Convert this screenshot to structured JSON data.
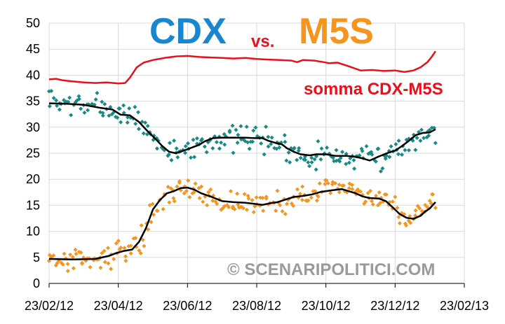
{
  "chart_data": {
    "type": "scatter",
    "title_parts": [
      {
        "text": "CDX",
        "color": "#1a86cf"
      },
      {
        "text": "vs.",
        "color": "#e8101a"
      },
      {
        "text": "M5S",
        "color": "#f7941d"
      }
    ],
    "ylim": [
      0,
      50
    ],
    "y_ticks": [
      "0",
      "5",
      "10",
      "15",
      "20",
      "25",
      "30",
      "35",
      "40",
      "45",
      "50"
    ],
    "x_ticks": [
      "23/02/12",
      "23/04/12",
      "23/06/12",
      "23/08/12",
      "23/10/12",
      "23/12/12",
      "23/02/13"
    ],
    "annotations": {
      "sum_label": "somma CDX-M5S",
      "watermark": "© SCENARIPOLITICI.COM"
    },
    "colors": {
      "cdx_points": "#178a85",
      "m5s_points": "#f7941d",
      "trend": "#000000",
      "sum": "#e8101a",
      "grid": "#d9d9d9"
    },
    "series": [
      {
        "key": "somma",
        "kind": "line",
        "points": [
          [
            0,
            39.2
          ],
          [
            6,
            39.3
          ],
          [
            12,
            39.0
          ],
          [
            20,
            38.8
          ],
          [
            30,
            38.6
          ],
          [
            40,
            38.5
          ],
          [
            50,
            38.6
          ],
          [
            60,
            38.4
          ],
          [
            66,
            38.5
          ],
          [
            70,
            39.5
          ],
          [
            76,
            41.5
          ],
          [
            82,
            42.4
          ],
          [
            90,
            42.9
          ],
          [
            100,
            43.3
          ],
          [
            110,
            43.6
          ],
          [
            120,
            43.7
          ],
          [
            130,
            43.5
          ],
          [
            140,
            43.4
          ],
          [
            150,
            43.3
          ],
          [
            160,
            43.2
          ],
          [
            170,
            43.3
          ],
          [
            180,
            43.1
          ],
          [
            190,
            43.0
          ],
          [
            200,
            42.9
          ],
          [
            210,
            42.8
          ],
          [
            215,
            42.5
          ],
          [
            220,
            42.9
          ],
          [
            230,
            42.8
          ],
          [
            238,
            42.5
          ],
          [
            243,
            42.3
          ],
          [
            250,
            42.4
          ],
          [
            260,
            41.7
          ],
          [
            270,
            40.9
          ],
          [
            280,
            41.0
          ],
          [
            290,
            40.8
          ],
          [
            300,
            40.9
          ],
          [
            308,
            40.6
          ],
          [
            316,
            40.9
          ],
          [
            322,
            41.5
          ],
          [
            328,
            42.5
          ],
          [
            332,
            43.6
          ],
          [
            335,
            44.6
          ]
        ]
      },
      {
        "key": "cdx_trend",
        "kind": "line",
        "points": [
          [
            0,
            34.6
          ],
          [
            15,
            34.5
          ],
          [
            30,
            34.3
          ],
          [
            45,
            33.7
          ],
          [
            55,
            33.4
          ],
          [
            62,
            32.4
          ],
          [
            70,
            32.3
          ],
          [
            78,
            31.0
          ],
          [
            86,
            29.1
          ],
          [
            93,
            27.6
          ],
          [
            98,
            26.4
          ],
          [
            104,
            25.3
          ],
          [
            110,
            25.0
          ],
          [
            118,
            25.6
          ],
          [
            125,
            26.2
          ],
          [
            130,
            26.6
          ],
          [
            135,
            27.3
          ],
          [
            142,
            27.9
          ],
          [
            150,
            28.0
          ],
          [
            160,
            28.0
          ],
          [
            170,
            28.0
          ],
          [
            178,
            27.9
          ],
          [
            185,
            27.9
          ],
          [
            190,
            27.4
          ],
          [
            196,
            27.0
          ],
          [
            202,
            26.7
          ],
          [
            206,
            26.0
          ],
          [
            212,
            25.3
          ],
          [
            218,
            24.8
          ],
          [
            226,
            24.6
          ],
          [
            232,
            24.8
          ],
          [
            240,
            24.8
          ],
          [
            248,
            24.5
          ],
          [
            258,
            24.5
          ],
          [
            266,
            24.3
          ],
          [
            272,
            24.0
          ],
          [
            278,
            23.6
          ],
          [
            286,
            24.4
          ],
          [
            294,
            25.1
          ],
          [
            300,
            25.5
          ],
          [
            306,
            26.4
          ],
          [
            312,
            27.4
          ],
          [
            318,
            28.5
          ],
          [
            324,
            28.9
          ],
          [
            330,
            29.0
          ],
          [
            335,
            29.6
          ]
        ]
      },
      {
        "key": "m5s_trend",
        "kind": "line",
        "points": [
          [
            0,
            4.7
          ],
          [
            20,
            4.6
          ],
          [
            40,
            4.7
          ],
          [
            52,
            5.3
          ],
          [
            58,
            5.8
          ],
          [
            64,
            6.2
          ],
          [
            72,
            6.5
          ],
          [
            78,
            8.0
          ],
          [
            84,
            10.6
          ],
          [
            90,
            14.2
          ],
          [
            96,
            16.0
          ],
          [
            102,
            17.3
          ],
          [
            108,
            17.7
          ],
          [
            114,
            18.3
          ],
          [
            120,
            18.4
          ],
          [
            126,
            18.0
          ],
          [
            132,
            17.3
          ],
          [
            140,
            16.7
          ],
          [
            150,
            15.8
          ],
          [
            160,
            15.6
          ],
          [
            170,
            15.5
          ],
          [
            178,
            15.3
          ],
          [
            185,
            15.1
          ],
          [
            192,
            15.4
          ],
          [
            198,
            15.6
          ],
          [
            205,
            16.1
          ],
          [
            212,
            16.6
          ],
          [
            220,
            16.8
          ],
          [
            228,
            17.1
          ],
          [
            236,
            17.6
          ],
          [
            246,
            17.9
          ],
          [
            254,
            18.1
          ],
          [
            260,
            17.7
          ],
          [
            266,
            17.3
          ],
          [
            272,
            16.7
          ],
          [
            278,
            16.4
          ],
          [
            286,
            16.3
          ],
          [
            292,
            15.8
          ],
          [
            298,
            14.6
          ],
          [
            304,
            13.3
          ],
          [
            310,
            12.6
          ],
          [
            316,
            12.4
          ],
          [
            322,
            13.0
          ],
          [
            326,
            13.8
          ],
          [
            330,
            14.4
          ],
          [
            335,
            15.6
          ]
        ]
      },
      {
        "key": "cdx_points",
        "kind": "scatter",
        "noise": 2.4,
        "count": 240,
        "seed": 7
      },
      {
        "key": "m5s_points",
        "kind": "scatter",
        "noise": 2.2,
        "count": 240,
        "seed": 13
      }
    ],
    "grid": true,
    "legend": "none"
  }
}
